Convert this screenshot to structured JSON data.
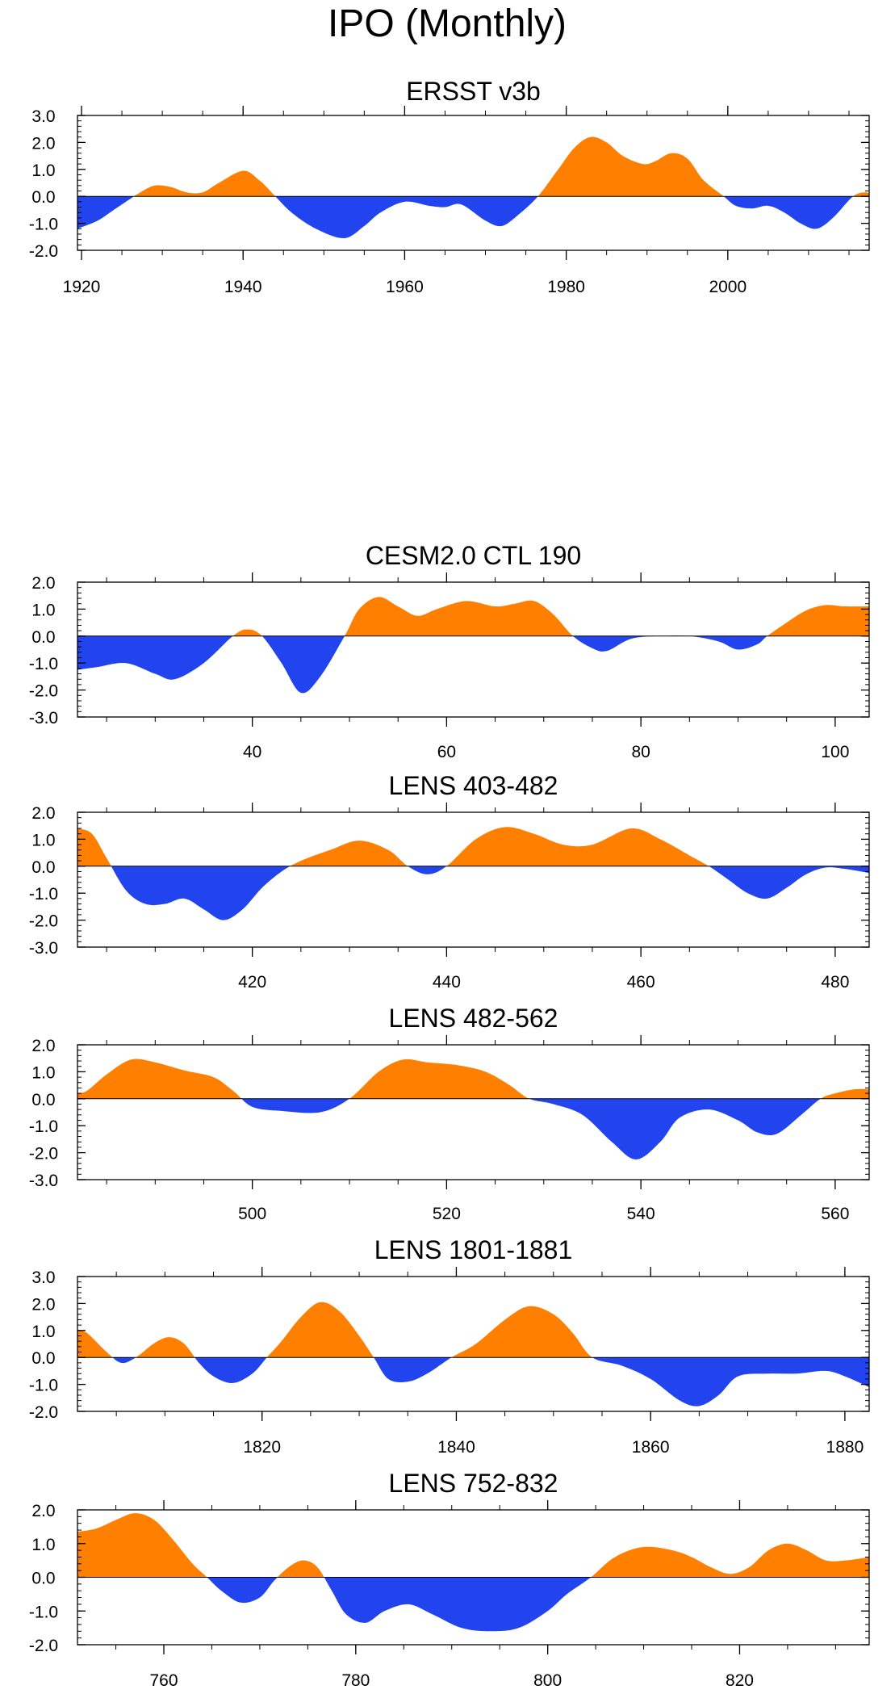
{
  "figure_title": "IPO (Monthly)",
  "colors": {
    "positive": "#ff8000",
    "negative": "#2244ee",
    "axis": "#000000"
  },
  "chart_data": [
    {
      "type": "area",
      "title": "ERSST v3b",
      "xlim": [
        1919.5,
        2017.5
      ],
      "ylim": [
        -2.0,
        3.0
      ],
      "xticks": [
        1920,
        1940,
        1960,
        1980,
        2000
      ],
      "xtick_labels": [
        "1920",
        "1940",
        "1960",
        "1980",
        "2000"
      ],
      "yticks": [
        -2.0,
        -1.0,
        0.0,
        1.0,
        2.0,
        3.0
      ],
      "ytick_labels": [
        "-2.0",
        "-1.0",
        "0.0",
        "1.0",
        "2.0",
        "3.0"
      ],
      "series": [
        {
          "name": "IPO",
          "x": [
            1919.5,
            1922,
            1924,
            1926,
            1927,
            1929,
            1931,
            1933,
            1935,
            1937,
            1940,
            1942,
            1944,
            1946,
            1949,
            1952.5,
            1955,
            1957,
            1960,
            1963,
            1965,
            1967,
            1970,
            1972,
            1974,
            1976.5,
            1979,
            1981,
            1983,
            1985,
            1987,
            1989.5,
            1991,
            1993,
            1995,
            1997,
            1999.5,
            2001,
            2003,
            2005,
            2007,
            2009,
            2011,
            2013,
            2015.5,
            2017,
            2017.5
          ],
          "y": [
            -1.2,
            -0.9,
            -0.5,
            -0.1,
            0.1,
            0.4,
            0.35,
            0.15,
            0.15,
            0.5,
            0.95,
            0.6,
            0.0,
            -0.6,
            -1.2,
            -1.55,
            -1.1,
            -0.6,
            -0.2,
            -0.35,
            -0.4,
            -0.3,
            -0.9,
            -1.1,
            -0.7,
            0.0,
            1.0,
            1.8,
            2.2,
            2.0,
            1.5,
            1.2,
            1.3,
            1.6,
            1.4,
            0.6,
            0.0,
            -0.35,
            -0.45,
            -0.35,
            -0.6,
            -1.0,
            -1.2,
            -0.8,
            0.0,
            0.15,
            0.1
          ]
        }
      ]
    },
    {
      "type": "area",
      "title": "CESM2.0 CTL 190",
      "xlim": [
        22,
        103.5
      ],
      "ylim": [
        -3.0,
        2.0
      ],
      "xticks": [
        40,
        60,
        80,
        100
      ],
      "xtick_labels": [
        "40",
        "60",
        "80",
        "100"
      ],
      "yticks": [
        -3.0,
        -2.0,
        -1.0,
        0.0,
        1.0,
        2.0
      ],
      "ytick_labels": [
        "-3.0",
        "-2.0",
        "-1.0",
        "0.0",
        "1.0",
        "2.0"
      ],
      "series": [
        {
          "name": "IPO",
          "x": [
            22,
            24,
            27,
            30,
            32,
            35,
            38,
            39.5,
            41,
            43,
            45,
            47,
            49.5,
            51,
            53,
            55,
            57,
            59,
            62,
            65,
            67,
            69,
            71,
            73,
            75,
            76.5,
            79,
            82,
            85,
            88,
            90,
            92,
            93,
            95,
            97,
            99,
            101,
            103.5
          ],
          "y": [
            -1.25,
            -1.15,
            -1.0,
            -1.4,
            -1.6,
            -1.0,
            0.0,
            0.25,
            0.0,
            -1.0,
            -2.1,
            -1.5,
            0.0,
            1.0,
            1.45,
            1.1,
            0.75,
            1.0,
            1.3,
            1.1,
            1.2,
            1.3,
            0.8,
            0.0,
            -0.45,
            -0.55,
            -0.1,
            0.0,
            0.0,
            -0.2,
            -0.5,
            -0.3,
            0.0,
            0.5,
            0.95,
            1.15,
            1.1,
            1.1
          ]
        }
      ]
    },
    {
      "type": "area",
      "title": "LENS 403-482",
      "xlim": [
        402,
        483.5
      ],
      "ylim": [
        -3.0,
        2.0
      ],
      "xticks": [
        420,
        440,
        460,
        480
      ],
      "xtick_labels": [
        "420",
        "440",
        "460",
        "480"
      ],
      "yticks": [
        -3.0,
        -2.0,
        -1.0,
        0.0,
        1.0,
        2.0
      ],
      "ytick_labels": [
        "-3.0",
        "-2.0",
        "-1.0",
        "0.0",
        "1.0",
        "2.0"
      ],
      "series": [
        {
          "name": "IPO",
          "x": [
            402,
            403.5,
            405,
            407,
            409,
            411,
            413,
            415,
            417,
            419,
            421,
            423,
            425,
            428,
            431,
            434,
            436,
            438,
            440,
            443,
            446,
            449,
            452,
            455,
            459,
            462,
            465,
            467,
            469,
            471,
            473,
            475,
            477,
            479,
            481,
            483.5
          ],
          "y": [
            1.4,
            1.2,
            0.3,
            -0.9,
            -1.4,
            -1.4,
            -1.2,
            -1.6,
            -2.0,
            -1.6,
            -0.8,
            -0.2,
            0.2,
            0.6,
            0.95,
            0.6,
            0.0,
            -0.3,
            0.0,
            1.0,
            1.45,
            1.2,
            0.8,
            0.8,
            1.4,
            1.0,
            0.4,
            0.0,
            -0.5,
            -1.0,
            -1.2,
            -0.8,
            -0.3,
            -0.05,
            -0.1,
            -0.25
          ]
        }
      ]
    },
    {
      "type": "area",
      "title": "LENS 482-562",
      "xlim": [
        482,
        563.5
      ],
      "ylim": [
        -3.0,
        2.0
      ],
      "xticks": [
        500,
        520,
        540,
        560
      ],
      "xtick_labels": [
        "500",
        "520",
        "540",
        "560"
      ],
      "yticks": [
        -3.0,
        -2.0,
        -1.0,
        0.0,
        1.0,
        2.0
      ],
      "ytick_labels": [
        "-3.0",
        "-2.0",
        "-1.0",
        "0.0",
        "1.0",
        "2.0"
      ],
      "series": [
        {
          "name": "IPO",
          "x": [
            482,
            483,
            485,
            487.5,
            490,
            493,
            496,
            498,
            500,
            503,
            507,
            510,
            513,
            515.5,
            518,
            521,
            524,
            526.5,
            528.5,
            531,
            534,
            537,
            539.5,
            542,
            544,
            547,
            550,
            552,
            554,
            556.5,
            558.5,
            560,
            562,
            563.5
          ],
          "y": [
            0.2,
            0.3,
            0.9,
            1.45,
            1.35,
            1.05,
            0.8,
            0.3,
            -0.3,
            -0.45,
            -0.5,
            0.0,
            1.0,
            1.45,
            1.35,
            1.25,
            1.0,
            0.5,
            0.0,
            -0.2,
            -0.6,
            -1.6,
            -2.25,
            -1.6,
            -0.7,
            -0.4,
            -0.8,
            -1.25,
            -1.3,
            -0.6,
            0.0,
            0.2,
            0.35,
            0.35
          ]
        }
      ]
    },
    {
      "type": "area",
      "title": "LENS 1801-1881",
      "xlim": [
        1801,
        1882.5
      ],
      "ylim": [
        -2.0,
        3.0
      ],
      "xticks": [
        1820,
        1840,
        1860,
        1880
      ],
      "xtick_labels": [
        "1820",
        "1840",
        "1860",
        "1880"
      ],
      "yticks": [
        -2.0,
        -1.0,
        0.0,
        1.0,
        2.0,
        3.0
      ],
      "ytick_labels": [
        "-2.0",
        "-1.0",
        "0.0",
        "1.0",
        "2.0",
        "3.0"
      ],
      "series": [
        {
          "name": "IPO",
          "x": [
            1801,
            1802,
            1804,
            1805.5,
            1807,
            1809,
            1810.5,
            1812,
            1813.5,
            1815,
            1817,
            1819,
            1820.5,
            1822,
            1824,
            1826,
            1828,
            1830,
            1831.5,
            1833,
            1835,
            1837,
            1839.5,
            1842,
            1845,
            1847.5,
            1850,
            1852,
            1854,
            1857,
            1860,
            1863,
            1865,
            1867,
            1869,
            1872,
            1875,
            1878,
            1880,
            1882.5
          ],
          "y": [
            1.0,
            0.9,
            0.2,
            -0.2,
            0.0,
            0.55,
            0.75,
            0.5,
            -0.2,
            -0.7,
            -0.95,
            -0.6,
            0.0,
            0.6,
            1.5,
            2.05,
            1.7,
            0.8,
            0.0,
            -0.8,
            -0.9,
            -0.6,
            0.0,
            0.5,
            1.4,
            1.9,
            1.6,
            0.9,
            0.0,
            -0.3,
            -0.8,
            -1.6,
            -1.8,
            -1.4,
            -0.7,
            -0.6,
            -0.6,
            -0.5,
            -0.7,
            -1.1
          ]
        }
      ]
    },
    {
      "type": "area",
      "title": "LENS 752-832",
      "xlim": [
        751,
        833.5
      ],
      "ylim": [
        -2.0,
        2.0
      ],
      "xticks": [
        760,
        780,
        800,
        820
      ],
      "xtick_labels": [
        "760",
        "780",
        "800",
        "820"
      ],
      "yticks": [
        -2.0,
        -1.0,
        0.0,
        1.0,
        2.0
      ],
      "ytick_labels": [
        "-2.0",
        "-1.0",
        "0.0",
        "1.0",
        "2.0"
      ],
      "series": [
        {
          "name": "IPO",
          "x": [
            751,
            753,
            755,
            757,
            759,
            761,
            763,
            764.5,
            766,
            768,
            770,
            771.5,
            773,
            774.5,
            776,
            777.5,
            779,
            781,
            783,
            785.5,
            788,
            791,
            794,
            797,
            800,
            802,
            804.5,
            807,
            810,
            813,
            815,
            817,
            819,
            821,
            823,
            825,
            827,
            829,
            831,
            833.5
          ],
          "y": [
            1.35,
            1.45,
            1.7,
            1.9,
            1.7,
            1.1,
            0.4,
            0.0,
            -0.4,
            -0.75,
            -0.6,
            -0.1,
            0.3,
            0.5,
            0.3,
            -0.4,
            -1.1,
            -1.35,
            -1.0,
            -0.8,
            -1.1,
            -1.5,
            -1.6,
            -1.5,
            -1.0,
            -0.5,
            0.0,
            0.6,
            0.9,
            0.8,
            0.6,
            0.3,
            0.1,
            0.3,
            0.8,
            1.0,
            0.8,
            0.5,
            0.5,
            0.6
          ]
        }
      ]
    }
  ]
}
